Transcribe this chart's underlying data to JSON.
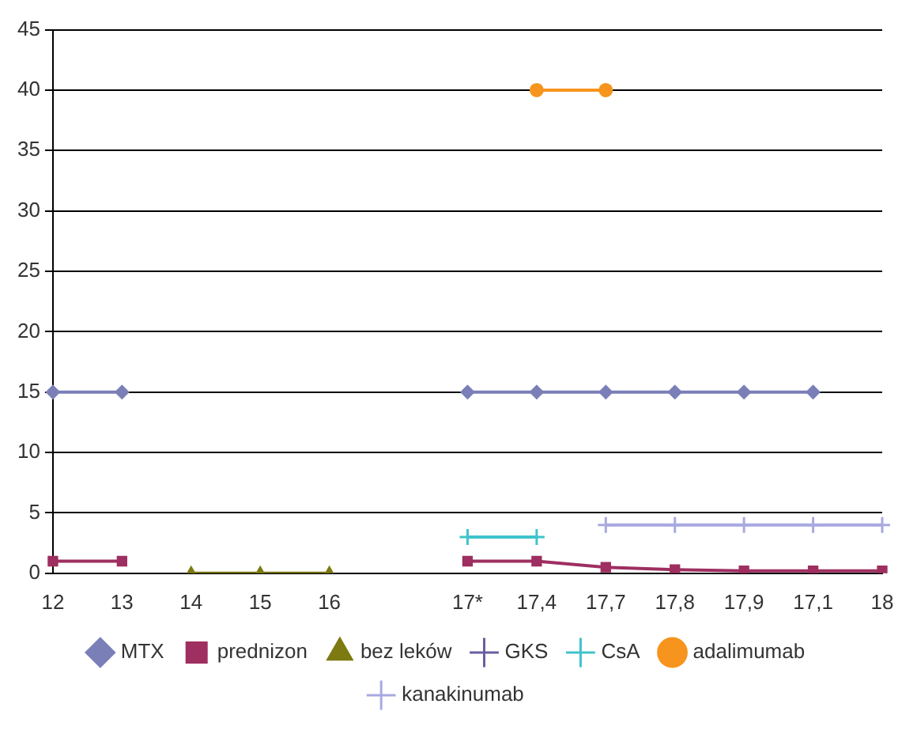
{
  "chart_data": {
    "type": "line",
    "categories": [
      "12",
      "13",
      "14",
      "15",
      "16",
      null,
      "17*",
      "17,4",
      "17,7",
      "17,8",
      "17,9",
      "17,1",
      "18"
    ],
    "series": [
      {
        "name": "MTX",
        "color": "#7b7fb8",
        "marker": "diamond",
        "values": [
          15,
          15,
          null,
          null,
          null,
          null,
          15,
          15,
          15,
          15,
          15,
          15,
          null
        ]
      },
      {
        "name": "prednizon",
        "color": "#9e2f60",
        "marker": "square",
        "values": [
          1,
          1,
          null,
          null,
          null,
          null,
          1,
          1,
          0.5,
          0.3,
          0.2,
          0.2,
          0.2
        ]
      },
      {
        "name": "bez leków",
        "color": "#7d7a12",
        "marker": "triangle",
        "values": [
          null,
          null,
          0,
          0,
          0,
          null,
          null,
          null,
          null,
          null,
          null,
          null,
          null
        ]
      },
      {
        "name": "GKS",
        "color": "#6a5fa0",
        "marker": "cross",
        "values": [
          null,
          null,
          null,
          null,
          null,
          null,
          null,
          null,
          null,
          null,
          null,
          null,
          null
        ]
      },
      {
        "name": "CsA",
        "color": "#3fc3cc",
        "marker": "cross",
        "values": [
          null,
          null,
          null,
          null,
          null,
          null,
          3,
          3,
          null,
          null,
          null,
          null,
          null
        ]
      },
      {
        "name": "adalimumab",
        "color": "#f7941d",
        "marker": "circle",
        "values": [
          null,
          null,
          null,
          null,
          null,
          null,
          null,
          40,
          40,
          null,
          null,
          null,
          null
        ]
      },
      {
        "name": "kanakinumab",
        "color": "#a8a9e0",
        "marker": "cross",
        "values": [
          null,
          null,
          null,
          null,
          null,
          null,
          null,
          null,
          4,
          4,
          4,
          4,
          4
        ]
      }
    ],
    "ylim": [
      0,
      45
    ],
    "yticks": [
      0,
      5,
      10,
      15,
      20,
      25,
      30,
      35,
      40,
      45
    ],
    "grid": "y",
    "legend": "bottom"
  }
}
